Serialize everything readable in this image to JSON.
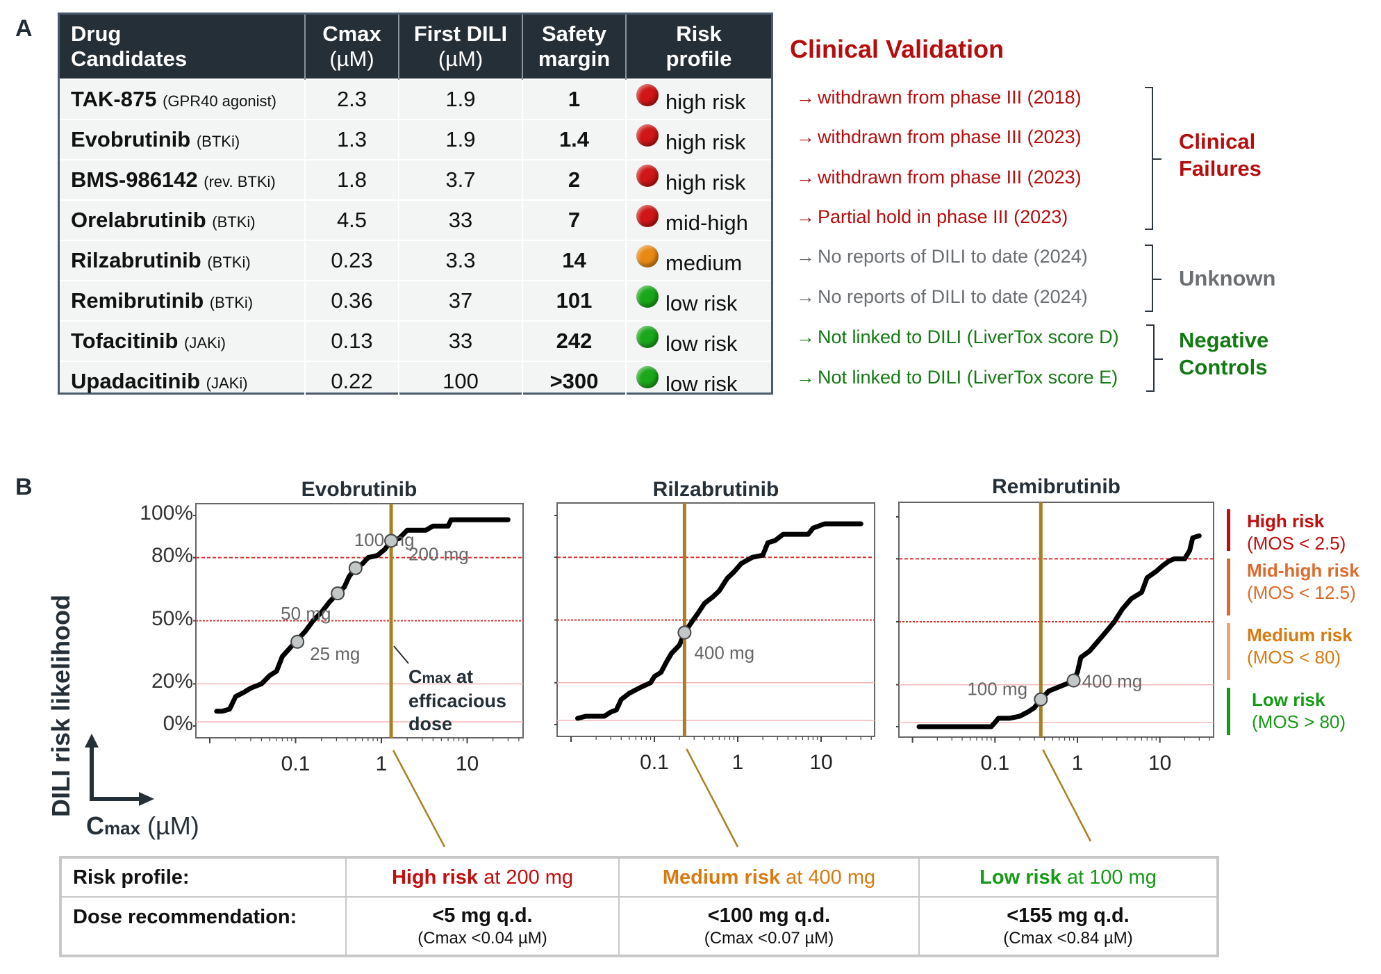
{
  "panel_a": {
    "label": "A",
    "table": {
      "headers": [
        {
          "line1": "Drug",
          "line2": "Candidates"
        },
        {
          "line1": "Cmax",
          "line2": "(µM)"
        },
        {
          "line1": "First DILI",
          "line2": "(µM)"
        },
        {
          "line1": "Safety",
          "line2": "margin"
        },
        {
          "line1": "Risk",
          "line2": "profile"
        }
      ],
      "rows": [
        {
          "drug": "TAK-875",
          "class": "(GPR40 agonist)",
          "cmax": "2.3",
          "first_dili": "1.9",
          "safety_margin": "1",
          "risk_color": "red",
          "risk": "high risk"
        },
        {
          "drug": "Evobrutinib",
          "class": "(BTKi)",
          "cmax": "1.3",
          "first_dili": "1.9",
          "safety_margin": "1.4",
          "risk_color": "red",
          "risk": "high risk"
        },
        {
          "drug": "BMS-986142",
          "class": "(rev. BTKi)",
          "cmax": "1.8",
          "first_dili": "3.7",
          "safety_margin": "2",
          "risk_color": "red",
          "risk": "high risk"
        },
        {
          "drug": "Orelabrutinib",
          "class": "(BTKi)",
          "cmax": "4.5",
          "first_dili": "33",
          "safety_margin": "7",
          "risk_color": "red",
          "risk": "mid-high"
        },
        {
          "drug": "Rilzabrutinib",
          "class": "(BTKi)",
          "cmax": "0.23",
          "first_dili": "3.3",
          "safety_margin": "14",
          "risk_color": "orange",
          "risk": "medium"
        },
        {
          "drug": "Remibrutinib",
          "class": "(BTKi)",
          "cmax": "0.36",
          "first_dili": "37",
          "safety_margin": "101",
          "risk_color": "green",
          "risk": "low risk"
        },
        {
          "drug": "Tofacitinib",
          "class": "(JAKi)",
          "cmax": "0.13",
          "first_dili": "33",
          "safety_margin": "242",
          "risk_color": "green",
          "risk": "low risk"
        },
        {
          "drug": "Upadacitinib",
          "class": "(JAKi)",
          "cmax": "0.22",
          "first_dili": "100",
          "safety_margin": ">300",
          "risk_color": "green",
          "risk": "low risk"
        }
      ]
    },
    "clinical_validation": {
      "title": "Clinical Validation",
      "arrow": "→",
      "lines": [
        {
          "text": "withdrawn from phase III (2018)",
          "color": "#b50d0d"
        },
        {
          "text": "withdrawn from phase III (2023)",
          "color": "#b50d0d"
        },
        {
          "text": "withdrawn from phase III (2023)",
          "color": "#b50d0d"
        },
        {
          "text": "Partial hold in phase III (2023)",
          "color": "#b50d0d"
        },
        {
          "text": "No reports of DILI to date (2024)",
          "color": "#6b6e72"
        },
        {
          "text": "No reports of DILI to date (2024)",
          "color": "#6b6e72"
        },
        {
          "text": "Not linked to DILI (LiverTox score D)",
          "color": "#137a13"
        },
        {
          "text": "Not linked to DILI (LiverTox score E)",
          "color": "#137a13"
        }
      ],
      "groups": [
        {
          "line1": "Clinical",
          "line2": "Failures",
          "color": "#b50d0d"
        },
        {
          "line1": "Unknown",
          "line2": "",
          "color": "#6b6e72"
        },
        {
          "line1": "Negative",
          "line2": "Controls",
          "color": "#137a13"
        }
      ]
    }
  },
  "colors": {
    "red": "#d01616",
    "orange": "#e88a12",
    "green": "#1aa81a",
    "efficacious_line": "#a8801f",
    "high_risk": "#c00d0d",
    "mid_high_risk": "#dd6a2c",
    "medium_risk": "#d97a10",
    "medium_risk_bar": "#eaa574",
    "low_risk": "#159a15"
  },
  "panel_b": {
    "label": "B",
    "y_axis_label": "DILI risk likelihood",
    "x_axis_label_main": "C",
    "x_axis_label_sub": "max",
    "x_axis_label_unit": " (µM)",
    "annotation": {
      "line1_main": "C",
      "line1_sub": "max",
      "line1_rest": " at",
      "line2": "efficacious",
      "line3": "dose"
    },
    "legend": [
      {
        "title": "High risk",
        "subtitle": "(MOS < 2.5)",
        "color": "#c00d0d",
        "bar": "#c00d0d"
      },
      {
        "title": "Mid-high risk",
        "subtitle": "(MOS < 12.5)",
        "color": "#dd6a2c",
        "bar": "#dd6a2c"
      },
      {
        "title": "Medium risk",
        "subtitle": "(MOS < 80)",
        "color": "#d97a10",
        "bar": "#eaa574"
      },
      {
        "title": "Low risk",
        "subtitle": "(MOS > 80)",
        "color": "#159a15",
        "bar": "#159a15"
      }
    ],
    "summary_table": {
      "row_headers": [
        "Risk profile:",
        "Dose recommendation:"
      ],
      "columns": [
        {
          "risk_bold": "High risk",
          "risk_rest": " at 200 mg",
          "color": "#c00d0d",
          "dose": "<5 mg q.d.",
          "cmax": "(Cmax <0.04 µM)"
        },
        {
          "risk_bold": "Medium risk",
          "risk_rest": " at 400 mg",
          "color": "#d97a10",
          "dose": "<100 mg q.d.",
          "cmax": "(Cmax <0.07 µM)"
        },
        {
          "risk_bold": "Low risk",
          "risk_rest": " at 100 mg",
          "color": "#159a15",
          "dose": "<155 mg q.d.",
          "cmax": "(Cmax <0.84 µM)"
        }
      ]
    }
  },
  "chart_data": [
    {
      "type": "line",
      "title": "Evobrutinib",
      "xlabel": "Cmax (µM)",
      "ylabel": "DILI risk likelihood",
      "xscale": "log",
      "xlim": [
        0.008,
        45
      ],
      "xticks": [
        0.1,
        1,
        10
      ],
      "xtick_labels": [
        "0.1",
        "1",
        "10"
      ],
      "ylim": [
        0,
        100
      ],
      "yticks": [
        0,
        20,
        50,
        80,
        100
      ],
      "ytick_labels": [
        "0%",
        "20%",
        "50%",
        "80%",
        "100%"
      ],
      "threshold_lines": [
        2,
        20,
        50,
        80
      ],
      "efficacious_cmax": 1.3,
      "x": [
        0.012,
        0.014,
        0.017,
        0.02,
        0.025,
        0.03,
        0.04,
        0.05,
        0.06,
        0.07,
        0.1,
        0.13,
        0.16,
        0.2,
        0.25,
        0.31,
        0.37,
        0.42,
        0.5,
        0.6,
        0.7,
        0.9,
        1.1,
        1.3,
        1.6,
        2.0,
        3.3,
        4.0,
        6.0,
        6.5,
        30
      ],
      "y": [
        7,
        7,
        8,
        14,
        16,
        18,
        20,
        24,
        26,
        33,
        40,
        45,
        50,
        54,
        59,
        63,
        66,
        71,
        75,
        77,
        80,
        81,
        84,
        88,
        89,
        93,
        93,
        95,
        95,
        98,
        98
      ],
      "points": [
        {
          "label": "25 mg",
          "x": 0.105,
          "y": 40
        },
        {
          "label": "50 mg",
          "x": 0.31,
          "y": 63
        },
        {
          "label": "100 mg",
          "x": 0.5,
          "y": 75
        },
        {
          "label": "200 mg",
          "x": 1.3,
          "y": 88
        }
      ]
    },
    {
      "type": "line",
      "title": "Rilzabrutinib",
      "xlabel": "Cmax (µM)",
      "ylabel": "DILI risk likelihood",
      "xscale": "log",
      "xlim": [
        0.008,
        45
      ],
      "xticks": [
        0.1,
        1,
        10
      ],
      "xtick_labels": [
        "0.1",
        "1",
        "10"
      ],
      "ylim": [
        0,
        100
      ],
      "threshold_lines": [
        2,
        20,
        50,
        80
      ],
      "efficacious_cmax": 0.23,
      "x": [
        0.012,
        0.015,
        0.02,
        0.025,
        0.03,
        0.035,
        0.04,
        0.05,
        0.07,
        0.09,
        0.1,
        0.12,
        0.14,
        0.16,
        0.2,
        0.23,
        0.28,
        0.33,
        0.4,
        0.5,
        0.6,
        0.75,
        0.9,
        1.1,
        1.5,
        2.0,
        2.3,
        2.8,
        3.5,
        7.0,
        8.0,
        11,
        30
      ],
      "y": [
        3,
        4,
        4,
        4,
        6,
        7,
        12,
        15,
        18,
        20,
        23,
        25,
        30,
        34,
        38,
        44,
        49,
        53,
        58,
        61,
        64,
        70,
        73,
        77,
        80,
        81,
        87,
        88,
        91,
        91,
        94,
        96,
        96
      ],
      "points": [
        {
          "label": "400 mg",
          "x": 0.23,
          "y": 44
        }
      ]
    },
    {
      "type": "line",
      "title": "Remibrutinib",
      "xlabel": "Cmax (µM)",
      "ylabel": "DILI risk likelihood",
      "xscale": "log",
      "xlim": [
        0.008,
        45
      ],
      "xticks": [
        0.1,
        1,
        10
      ],
      "xtick_labels": [
        "0.1",
        "1",
        "10"
      ],
      "ylim": [
        0,
        100
      ],
      "threshold_lines": [
        2,
        20,
        50,
        80
      ],
      "efficacious_cmax": 0.36,
      "x": [
        0.012,
        0.05,
        0.09,
        0.1,
        0.11,
        0.15,
        0.2,
        0.25,
        0.3,
        0.36,
        0.45,
        0.6,
        0.8,
        0.9,
        1.0,
        1.1,
        1.4,
        1.8,
        2.2,
        2.8,
        3.5,
        4.5,
        6.0,
        7.0,
        9.0,
        11,
        13,
        15,
        20,
        23,
        25,
        30
      ],
      "y": [
        0,
        0,
        0,
        2,
        4,
        4,
        5,
        7,
        9,
        13,
        17,
        19,
        21,
        22,
        26,
        33,
        36,
        41,
        45,
        50,
        56,
        61,
        64,
        71,
        74,
        77,
        79,
        80,
        80,
        84,
        90,
        91
      ],
      "points": [
        {
          "label": "100 mg",
          "x": 0.36,
          "y": 13
        },
        {
          "label": "400 mg",
          "x": 0.9,
          "y": 22
        }
      ]
    }
  ]
}
